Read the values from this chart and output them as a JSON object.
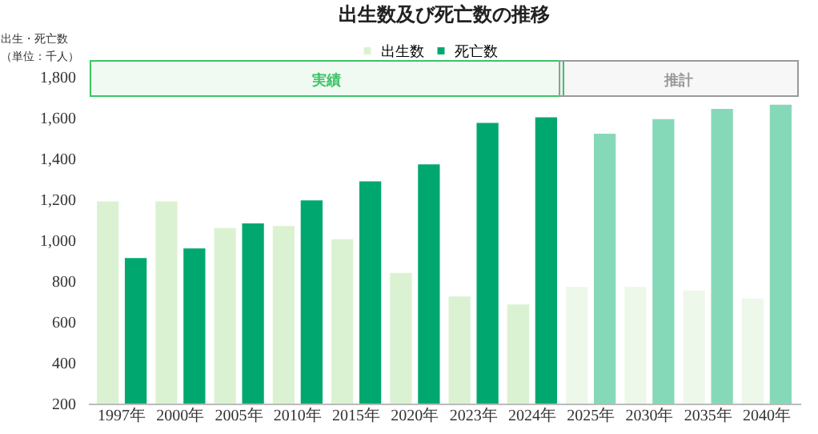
{
  "chart_data": {
    "type": "bar",
    "title": "出生数及び死亡数の推移",
    "ylabel": "出生・死亡数（単位：千人）",
    "categories": [
      "1997年",
      "2000年",
      "2005年",
      "2010年",
      "2015年",
      "2020年",
      "2023年",
      "2024年",
      "2025年",
      "2030年",
      "2035年",
      "2040年"
    ],
    "series": [
      {
        "name": "出生数",
        "color": "#dbf2d2",
        "colors": [
          "#dbf2d2",
          "#dbf2d2",
          "#dbf2d2",
          "#dbf2d2",
          "#dbf2d2",
          "#dbf2d2",
          "#dbf2d2",
          "#dbf2d2",
          "#eef8ea",
          "#eef8ea",
          "#eef8ea",
          "#eef8ea"
        ],
        "values": [
          1190,
          1190,
          1060,
          1070,
          1005,
          840,
          725,
          685,
          772,
          772,
          754,
          715
        ]
      },
      {
        "name": "死亡数",
        "color": "#00a870",
        "colors": [
          "#00a870",
          "#00a870",
          "#00a870",
          "#00a870",
          "#00a870",
          "#00a870",
          "#00a870",
          "#00a870",
          "#86d9b8",
          "#86d9b8",
          "#86d9b8",
          "#86d9b8"
        ],
        "values": [
          913,
          960,
          1082,
          1195,
          1288,
          1372,
          1575,
          1602,
          1522,
          1593,
          1643,
          1664
        ]
      }
    ],
    "bands": [
      {
        "axis": "x",
        "from": "1997年",
        "to": "2024年",
        "label": "実績",
        "color": "#3cc466"
      },
      {
        "axis": "x",
        "from": "2025年",
        "to": "2040年",
        "label": "推計",
        "color": "#9a9a9a"
      }
    ],
    "ylim": [
      200,
      1800
    ],
    "yticks": [
      200,
      400,
      600,
      800,
      {
        "value": 1000,
        "label": "1,000"
      },
      {
        "value": 1200,
        "label": "1,200"
      },
      {
        "value": 1400,
        "label": "1,400"
      },
      {
        "value": 1600,
        "label": "1,600"
      },
      {
        "value": 1800,
        "label": "1,800"
      }
    ],
    "legend": "top",
    "grid": false
  }
}
